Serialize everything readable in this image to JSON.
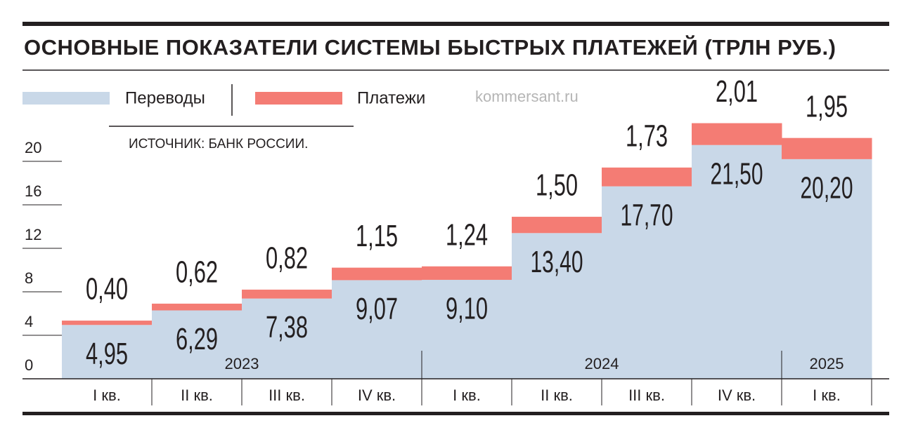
{
  "chart_data": {
    "type": "stacked_bar",
    "title": "ОСНОВНЫЕ ПОКАЗАТЕЛИ СИСТЕМЫ БЫСТРЫХ ПЛАТЕЖЕЙ (ТРЛН РУБ.)",
    "source": "ИСТОЧНИК: БАНК РОССИИ.",
    "watermark": "kommersant.ru",
    "categories": [
      "I кв.",
      "II кв.",
      "III кв.",
      "IV кв.",
      "I кв.",
      "II кв.",
      "III кв.",
      "IV кв.",
      "I кв."
    ],
    "years": [
      "2023",
      null,
      null,
      null,
      "2024",
      null,
      null,
      null,
      "2025"
    ],
    "series": [
      {
        "name": "Переводы",
        "color": "#c9d8e8",
        "values": [
          4.95,
          6.29,
          7.38,
          9.07,
          9.1,
          13.4,
          17.7,
          21.5,
          20.2
        ],
        "value_labels": [
          "4,95",
          "6,29",
          "7,38",
          "9,07",
          "9,10",
          "13,40",
          "17,70",
          "21,50",
          "20,20"
        ]
      },
      {
        "name": "Платежи",
        "color": "#f47c74",
        "values": [
          0.4,
          0.62,
          0.82,
          1.15,
          1.24,
          1.5,
          1.73,
          2.01,
          1.95
        ],
        "value_labels": [
          "0,40",
          "0,62",
          "0,82",
          "1,15",
          "1,24",
          "1,50",
          "1,73",
          "2,01",
          "1,95"
        ]
      }
    ],
    "ylim": [
      0,
      25
    ],
    "yticks": [
      0,
      4,
      8,
      12,
      16,
      20
    ]
  }
}
